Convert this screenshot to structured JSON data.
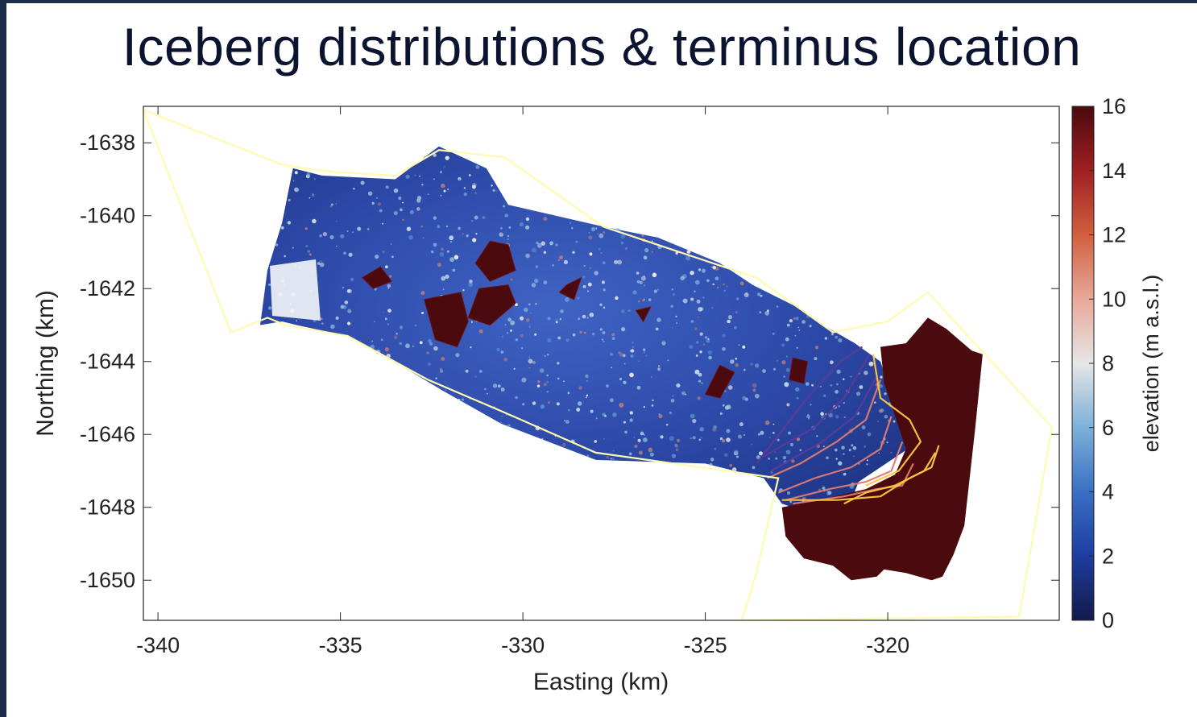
{
  "slide": {
    "title": "Iceberg distributions & terminus location"
  },
  "chart_data": {
    "type": "heatmap",
    "title": "Iceberg distributions & terminus location",
    "xlabel": "Easting (km)",
    "ylabel": "Northing (km)",
    "xlim": [
      -340.4,
      -315.3
    ],
    "ylim": [
      -1651.1,
      -1637.0
    ],
    "x_ticks": [
      -340,
      -335,
      -330,
      -325,
      -320
    ],
    "x_tick_labels": [
      "-340",
      "-335",
      "-330",
      "-325",
      "-320"
    ],
    "y_ticks": [
      -1638,
      -1640,
      -1642,
      -1644,
      -1646,
      -1648,
      -1650
    ],
    "y_tick_labels": [
      "-1638",
      "-1640",
      "-1642",
      "-1644",
      "-1646",
      "-1648",
      "-1650"
    ],
    "colorbar": {
      "label": "elevation (m a.s.l.)",
      "range": [
        0,
        16
      ],
      "ticks": [
        0,
        2,
        4,
        6,
        8,
        10,
        12,
        14,
        16
      ],
      "tick_labels": [
        "0",
        "2",
        "4",
        "6",
        "8",
        "10",
        "12",
        "14",
        "16"
      ],
      "colormap": [
        "#141a4a",
        "#1c3da0",
        "#3a6fc4",
        "#7cb0d8",
        "#e6e6e6",
        "#e8a89a",
        "#d0603f",
        "#a01f22",
        "#4a0a0e"
      ]
    },
    "colors": {
      "fjord_ice": "#2f4fb0",
      "glacier": "#4a0a0e",
      "boundary_outline": "#fffab0",
      "terminus_early": "#5a3a9a",
      "terminus_mid": "#e07a70",
      "terminus_late": "#ffc640"
    },
    "boundary": [
      [
        -340.4,
        -1637.1
      ],
      [
        -337.6,
        -1638.2
      ],
      [
        -336.6,
        -1638.6
      ],
      [
        -336.0,
        -1638.7
      ],
      [
        -335.2,
        -1638.8
      ],
      [
        -333.5,
        -1638.9
      ],
      [
        -332.3,
        -1638.2
      ],
      [
        -330.5,
        -1638.4
      ],
      [
        -327.8,
        -1640.3
      ],
      [
        -323.6,
        -1641.7
      ],
      [
        -321.5,
        -1643.2
      ],
      [
        -320.0,
        -1642.9
      ],
      [
        -318.9,
        -1642.1
      ],
      [
        -315.5,
        -1645.8
      ],
      [
        -316.4,
        -1651.0
      ],
      [
        -324.0,
        -1651.1
      ],
      [
        -323.6,
        -1649.8
      ],
      [
        -323.0,
        -1647.2
      ],
      [
        -328.0,
        -1646.5
      ],
      [
        -330.5,
        -1645.4
      ],
      [
        -332.6,
        -1644.5
      ],
      [
        -334.8,
        -1643.3
      ],
      [
        -336.5,
        -1643.0
      ],
      [
        -337.0,
        -1642.8
      ],
      [
        -338.0,
        -1643.2
      ],
      [
        -340.4,
        -1637.1
      ]
    ],
    "fjord_region": [
      [
        -336.3,
        -1638.7
      ],
      [
        -335.5,
        -1638.9
      ],
      [
        -333.5,
        -1639.0
      ],
      [
        -332.3,
        -1638.1
      ],
      [
        -331.0,
        -1638.7
      ],
      [
        -330.4,
        -1639.7
      ],
      [
        -327.8,
        -1640.3
      ],
      [
        -326.3,
        -1640.6
      ],
      [
        -324.6,
        -1641.3
      ],
      [
        -323.7,
        -1641.9
      ],
      [
        -322.5,
        -1642.5
      ],
      [
        -321.6,
        -1643.1
      ],
      [
        -320.9,
        -1643.5
      ],
      [
        -320.2,
        -1644.0
      ],
      [
        -319.8,
        -1645.2
      ],
      [
        -319.3,
        -1646.3
      ],
      [
        -320.8,
        -1647.3
      ],
      [
        -321.0,
        -1647.8
      ],
      [
        -322.6,
        -1648.0
      ],
      [
        -322.9,
        -1647.9
      ],
      [
        -323.4,
        -1647.2
      ],
      [
        -325.0,
        -1646.8
      ],
      [
        -328.0,
        -1646.7
      ],
      [
        -330.6,
        -1645.7
      ],
      [
        -332.2,
        -1644.8
      ],
      [
        -333.7,
        -1643.9
      ],
      [
        -334.8,
        -1643.3
      ],
      [
        -336.2,
        -1643.0
      ],
      [
        -336.6,
        -1642.9
      ],
      [
        -337.2,
        -1643.0
      ],
      [
        -337.0,
        -1641.5
      ],
      [
        -336.6,
        -1640.2
      ],
      [
        -336.3,
        -1638.7
      ]
    ],
    "glacier_region": [
      [
        -320.2,
        -1643.6
      ],
      [
        -319.5,
        -1643.5
      ],
      [
        -318.9,
        -1642.8
      ],
      [
        -318.4,
        -1643.1
      ],
      [
        -317.7,
        -1643.7
      ],
      [
        -317.4,
        -1643.8
      ],
      [
        -317.6,
        -1645.8
      ],
      [
        -317.9,
        -1648.5
      ],
      [
        -318.2,
        -1649.3
      ],
      [
        -318.5,
        -1649.9
      ],
      [
        -318.8,
        -1650.0
      ],
      [
        -319.5,
        -1649.8
      ],
      [
        -320.1,
        -1649.7
      ],
      [
        -320.3,
        -1649.9
      ],
      [
        -321.0,
        -1650.0
      ],
      [
        -321.5,
        -1649.6
      ],
      [
        -322.3,
        -1649.4
      ],
      [
        -322.8,
        -1648.8
      ],
      [
        -322.9,
        -1648.0
      ],
      [
        -321.9,
        -1647.8
      ],
      [
        -320.6,
        -1647.5
      ],
      [
        -319.8,
        -1647.1
      ],
      [
        -319.5,
        -1646.4
      ],
      [
        -319.8,
        -1645.5
      ],
      [
        -320.1,
        -1644.6
      ],
      [
        -320.2,
        -1643.6
      ]
    ],
    "large_icebergs": [
      [
        [
          -331.2,
          -1642.0
        ],
        [
          -330.4,
          -1641.9
        ],
        [
          -330.2,
          -1642.4
        ],
        [
          -330.9,
          -1643.0
        ],
        [
          -331.5,
          -1642.8
        ]
      ],
      [
        [
          -332.7,
          -1642.3
        ],
        [
          -331.7,
          -1642.1
        ],
        [
          -331.5,
          -1642.9
        ],
        [
          -331.8,
          -1643.6
        ],
        [
          -332.4,
          -1643.4
        ]
      ],
      [
        [
          -331.3,
          -1641.3
        ],
        [
          -330.9,
          -1640.7
        ],
        [
          -330.4,
          -1640.8
        ],
        [
          -330.2,
          -1641.5
        ],
        [
          -330.9,
          -1641.8
        ]
      ],
      [
        [
          -328.8,
          -1641.9
        ],
        [
          -328.4,
          -1641.7
        ],
        [
          -328.6,
          -1642.3
        ],
        [
          -329.0,
          -1642.1
        ]
      ],
      [
        [
          -324.6,
          -1644.1
        ],
        [
          -324.2,
          -1644.3
        ],
        [
          -324.6,
          -1645.0
        ],
        [
          -325.0,
          -1644.9
        ]
      ],
      [
        [
          -322.6,
          -1643.9
        ],
        [
          -322.2,
          -1644.0
        ],
        [
          -322.3,
          -1644.6
        ],
        [
          -322.7,
          -1644.5
        ]
      ],
      [
        [
          -326.9,
          -1642.6
        ],
        [
          -326.5,
          -1642.5
        ],
        [
          -326.7,
          -1642.9
        ]
      ],
      [
        [
          -334.4,
          -1641.7
        ],
        [
          -333.9,
          -1641.4
        ],
        [
          -333.6,
          -1641.8
        ],
        [
          -334.1,
          -1642.0
        ]
      ]
    ],
    "terminus_lines": [
      {
        "color": "early",
        "points": [
          [
            -323.6,
            -1646.8
          ],
          [
            -322.2,
            -1645.0
          ],
          [
            -321.3,
            -1644.0
          ],
          [
            -320.7,
            -1643.6
          ]
        ]
      },
      {
        "color": "early",
        "points": [
          [
            -323.4,
            -1646.6
          ],
          [
            -322.0,
            -1645.8
          ],
          [
            -321.2,
            -1645.0
          ],
          [
            -320.5,
            -1643.8
          ]
        ]
      },
      {
        "color": "early",
        "points": [
          [
            -323.2,
            -1647.0
          ],
          [
            -321.8,
            -1646.2
          ],
          [
            -320.9,
            -1645.5
          ],
          [
            -320.3,
            -1644.4
          ]
        ]
      },
      {
        "color": "mid",
        "points": [
          [
            -323.3,
            -1647.2
          ],
          [
            -322.4,
            -1646.8
          ],
          [
            -321.4,
            -1646.2
          ],
          [
            -320.6,
            -1645.6
          ],
          [
            -320.2,
            -1644.5
          ]
        ]
      },
      {
        "color": "mid",
        "points": [
          [
            -323.0,
            -1647.6
          ],
          [
            -322.0,
            -1647.2
          ],
          [
            -321.0,
            -1646.9
          ],
          [
            -320.2,
            -1646.4
          ],
          [
            -319.9,
            -1645.5
          ]
        ]
      },
      {
        "color": "mid",
        "points": [
          [
            -322.8,
            -1647.8
          ],
          [
            -321.6,
            -1647.5
          ],
          [
            -320.6,
            -1647.3
          ],
          [
            -319.9,
            -1647.0
          ],
          [
            -319.6,
            -1646.2
          ]
        ]
      },
      {
        "color": "mid",
        "points": [
          [
            -322.6,
            -1647.9
          ],
          [
            -321.2,
            -1647.7
          ],
          [
            -320.3,
            -1647.5
          ],
          [
            -319.6,
            -1647.4
          ],
          [
            -319.3,
            -1646.8
          ]
        ]
      },
      {
        "color": "late",
        "points": [
          [
            -322.9,
            -1647.8
          ],
          [
            -321.4,
            -1647.8
          ],
          [
            -320.2,
            -1647.7
          ],
          [
            -319.4,
            -1647.2
          ],
          [
            -318.8,
            -1646.9
          ],
          [
            -318.6,
            -1646.3
          ]
        ]
      },
      {
        "color": "late",
        "points": [
          [
            -320.4,
            -1643.8
          ],
          [
            -320.2,
            -1645.0
          ],
          [
            -319.4,
            -1645.6
          ],
          [
            -319.1,
            -1646.2
          ],
          [
            -319.7,
            -1647.0
          ],
          [
            -320.6,
            -1647.4
          ]
        ]
      },
      {
        "color": "late",
        "points": [
          [
            -321.2,
            -1647.9
          ],
          [
            -320.6,
            -1647.6
          ],
          [
            -319.8,
            -1647.4
          ],
          [
            -319.0,
            -1647.0
          ],
          [
            -318.7,
            -1646.5
          ]
        ]
      }
    ]
  }
}
